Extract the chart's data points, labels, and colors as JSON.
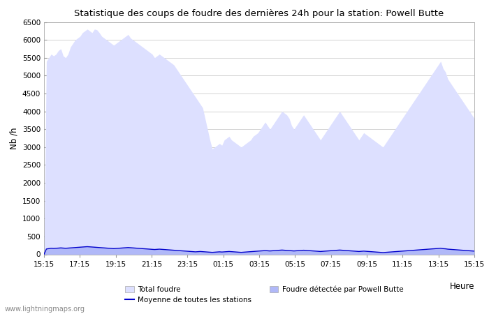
{
  "title": "Statistique des coups de foudre des dernières 24h pour la station: Powell Butte",
  "ylabel": "Nb /h",
  "xlabel": "Heure",
  "ylim": [
    0,
    6500
  ],
  "yticks": [
    0,
    500,
    1000,
    1500,
    2000,
    2500,
    3000,
    3500,
    4000,
    4500,
    5000,
    5500,
    6000,
    6500
  ],
  "xtick_labels": [
    "15:15",
    "17:15",
    "19:15",
    "21:15",
    "23:15",
    "01:15",
    "03:15",
    "05:15",
    "07:15",
    "09:15",
    "11:15",
    "13:15",
    "15:15"
  ],
  "background_color": "#ffffff",
  "plot_bg_color": "#ffffff",
  "grid_color": "#cccccc",
  "fill_total_color": "#dde0ff",
  "fill_detected_color": "#b0b8f8",
  "line_color": "#0000cc",
  "watermark": "www.lightningmaps.org",
  "legend_total": "Total foudre",
  "legend_moyenne": "Moyenne de toutes les stations",
  "legend_detected": "Foudre détectée par Powell Butte",
  "total_foudre": [
    0,
    5400,
    5500,
    5600,
    5550,
    5600,
    5700,
    5750,
    5550,
    5500,
    5600,
    5800,
    5900,
    6000,
    6050,
    6100,
    6200,
    6250,
    6300,
    6250,
    6200,
    6300,
    6280,
    6200,
    6100,
    6050,
    6000,
    5950,
    5900,
    5850,
    5900,
    5950,
    6000,
    6050,
    6100,
    6150,
    6050,
    6000,
    5950,
    5900,
    5850,
    5800,
    5750,
    5700,
    5650,
    5600,
    5500,
    5550,
    5600,
    5550,
    5500,
    5450,
    5400,
    5350,
    5300,
    5200,
    5100,
    5000,
    4900,
    4800,
    4700,
    4600,
    4500,
    4400,
    4300,
    4200,
    4100,
    3800,
    3500,
    3200,
    2950,
    3000,
    3050,
    3100,
    3050,
    3200,
    3250,
    3300,
    3200,
    3150,
    3100,
    3050,
    3000,
    3050,
    3100,
    3150,
    3200,
    3300,
    3350,
    3400,
    3500,
    3600,
    3700,
    3600,
    3500,
    3600,
    3700,
    3800,
    3900,
    4000,
    3950,
    3900,
    3800,
    3600,
    3500,
    3600,
    3700,
    3800,
    3900,
    3800,
    3700,
    3600,
    3500,
    3400,
    3300,
    3200,
    3300,
    3400,
    3500,
    3600,
    3700,
    3800,
    3900,
    4000,
    3900,
    3800,
    3700,
    3600,
    3500,
    3400,
    3300,
    3200,
    3300,
    3400,
    3350,
    3300,
    3250,
    3200,
    3150,
    3100,
    3050,
    3000,
    3100,
    3200,
    3300,
    3400,
    3500,
    3600,
    3700,
    3800,
    3900,
    4000,
    4100,
    4200,
    4300,
    4400,
    4500,
    4600,
    4700,
    4800,
    4900,
    5000,
    5100,
    5200,
    5300,
    5400,
    5200,
    5100,
    4900,
    4800,
    4700,
    4600,
    4500,
    4400,
    4300,
    4200,
    4100,
    4000,
    3900,
    3800
  ],
  "detected": [
    0,
    150,
    160,
    170,
    165,
    170,
    175,
    180,
    175,
    170,
    175,
    180,
    185,
    190,
    195,
    200,
    205,
    210,
    215,
    210,
    205,
    200,
    195,
    190,
    185,
    180,
    175,
    170,
    165,
    160,
    165,
    170,
    175,
    180,
    185,
    190,
    185,
    180,
    175,
    170,
    165,
    160,
    155,
    150,
    145,
    140,
    135,
    140,
    145,
    140,
    135,
    130,
    125,
    120,
    115,
    110,
    105,
    100,
    95,
    90,
    85,
    80,
    75,
    70,
    75,
    80,
    75,
    70,
    65,
    60,
    55,
    60,
    65,
    70,
    65,
    70,
    75,
    80,
    75,
    70,
    65,
    60,
    55,
    60,
    65,
    70,
    75,
    80,
    85,
    90,
    95,
    100,
    105,
    100,
    95,
    100,
    105,
    110,
    115,
    120,
    115,
    110,
    105,
    100,
    95,
    100,
    105,
    110,
    115,
    110,
    105,
    100,
    95,
    90,
    85,
    80,
    85,
    90,
    95,
    100,
    105,
    110,
    115,
    120,
    115,
    110,
    105,
    100,
    95,
    90,
    85,
    80,
    85,
    90,
    85,
    80,
    75,
    70,
    65,
    60,
    55,
    50,
    55,
    60,
    65,
    70,
    75,
    80,
    85,
    90,
    95,
    100,
    105,
    110,
    115,
    120,
    125,
    130,
    135,
    140,
    145,
    150,
    155,
    160,
    165,
    170,
    160,
    155,
    145,
    140,
    135,
    130,
    125,
    120,
    115,
    110,
    105,
    100,
    95,
    90
  ],
  "moyenne": [
    0,
    150,
    160,
    170,
    165,
    170,
    175,
    180,
    175,
    170,
    175,
    180,
    185,
    190,
    195,
    200,
    205,
    210,
    215,
    210,
    205,
    200,
    195,
    190,
    185,
    180,
    175,
    170,
    165,
    160,
    165,
    170,
    175,
    180,
    185,
    190,
    185,
    180,
    175,
    170,
    165,
    160,
    155,
    150,
    145,
    140,
    135,
    140,
    145,
    140,
    135,
    130,
    125,
    120,
    115,
    110,
    105,
    100,
    95,
    90,
    85,
    80,
    75,
    70,
    75,
    80,
    75,
    70,
    65,
    60,
    55,
    60,
    65,
    70,
    65,
    70,
    75,
    80,
    75,
    70,
    65,
    60,
    55,
    60,
    65,
    70,
    75,
    80,
    85,
    90,
    95,
    100,
    105,
    100,
    95,
    100,
    105,
    110,
    115,
    120,
    115,
    110,
    105,
    100,
    95,
    100,
    105,
    110,
    115,
    110,
    105,
    100,
    95,
    90,
    85,
    80,
    85,
    90,
    95,
    100,
    105,
    110,
    115,
    120,
    115,
    110,
    105,
    100,
    95,
    90,
    85,
    80,
    85,
    90,
    85,
    80,
    75,
    70,
    65,
    60,
    55,
    50,
    55,
    60,
    65,
    70,
    75,
    80,
    85,
    90,
    95,
    100,
    105,
    110,
    115,
    120,
    125,
    130,
    135,
    140,
    145,
    150,
    155,
    160,
    165,
    170,
    160,
    155,
    145,
    140,
    135,
    130,
    125,
    120,
    115,
    110,
    105,
    100,
    95,
    90
  ]
}
